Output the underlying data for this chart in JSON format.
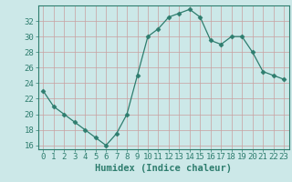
{
  "x": [
    0,
    1,
    2,
    3,
    4,
    5,
    6,
    7,
    8,
    9,
    10,
    11,
    12,
    13,
    14,
    15,
    16,
    17,
    18,
    19,
    20,
    21,
    22,
    23
  ],
  "y": [
    23,
    21,
    20,
    19,
    18,
    17,
    16,
    17.5,
    20,
    25,
    30,
    31,
    32.5,
    33,
    33.5,
    32.5,
    29.5,
    29,
    30,
    30,
    28,
    25.5,
    25,
    24.5
  ],
  "line_color": "#2e7d6e",
  "marker": "D",
  "marker_size": 2.5,
  "bg_color": "#cce8e8",
  "grid_color_major": "#c8a0a0",
  "grid_color_minor": "#ddc8c8",
  "xlabel": "Humidex (Indice chaleur)",
  "ylim": [
    15.5,
    34
  ],
  "xlim": [
    -0.5,
    23.5
  ],
  "yticks": [
    16,
    18,
    20,
    22,
    24,
    26,
    28,
    30,
    32
  ],
  "xticks": [
    0,
    1,
    2,
    3,
    4,
    5,
    6,
    7,
    8,
    9,
    10,
    11,
    12,
    13,
    14,
    15,
    16,
    17,
    18,
    19,
    20,
    21,
    22,
    23
  ],
  "xlabel_fontsize": 7.5,
  "tick_fontsize": 6.5,
  "tick_color": "#2e7d6e"
}
